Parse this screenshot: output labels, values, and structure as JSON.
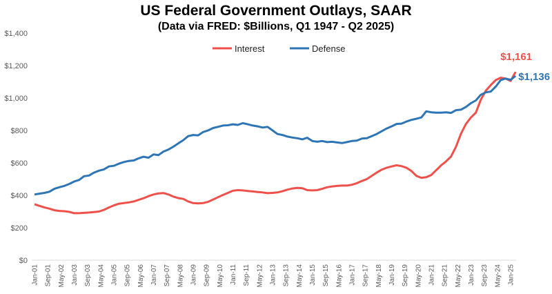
{
  "chart_data": {
    "type": "line",
    "title": "US Federal Government Outlays, SAAR",
    "subtitle": "(Data via FRED: $Billions, Q1 1947 - Q2 2025)",
    "xlabel": "",
    "ylabel": "",
    "ylim": [
      0,
      1400
    ],
    "y_ticks": [
      "$0",
      "$200",
      "$400",
      "$600",
      "$800",
      "$1,000",
      "$1,200",
      "$1,400"
    ],
    "y_tick_values": [
      0,
      200,
      400,
      600,
      800,
      1000,
      1200,
      1400
    ],
    "x_ticks": [
      "Jan-01",
      "Sep-01",
      "May-02",
      "Jan-03",
      "Sep-03",
      "May-04",
      "Jan-05",
      "Sep-05",
      "May-06",
      "Jan-07",
      "Sep-07",
      "May-08",
      "Jan-09",
      "Sep-09",
      "May-10",
      "Jan-11",
      "Sep-11",
      "May-12",
      "Jan-13",
      "Sep-13",
      "May-14",
      "Jan-15",
      "Sep-15",
      "May-16",
      "Jan-17",
      "Sep-17",
      "May-18",
      "Jan-19",
      "Sep-19",
      "May-20",
      "Jan-21",
      "Sep-21",
      "May-22",
      "Jan-23",
      "Sep-23",
      "May-24",
      "Jan-25"
    ],
    "x_start": "2001-Q1",
    "x_frequency": "quarterly",
    "grid": false,
    "legend_position": "top-center",
    "series": [
      {
        "name": "Interest",
        "color": "#F0504A",
        "end_label": "$1,161",
        "values": [
          345,
          335,
          325,
          318,
          308,
          304,
          302,
          298,
          290,
          290,
          292,
          294,
          297,
          300,
          310,
          325,
          338,
          348,
          352,
          356,
          362,
          372,
          382,
          395,
          405,
          412,
          414,
          405,
          392,
          383,
          378,
          362,
          352,
          350,
          352,
          360,
          374,
          388,
          402,
          415,
          428,
          432,
          430,
          427,
          424,
          420,
          418,
          413,
          415,
          418,
          425,
          435,
          442,
          446,
          444,
          432,
          430,
          432,
          440,
          450,
          455,
          458,
          460,
          460,
          465,
          475,
          488,
          500,
          520,
          540,
          558,
          570,
          578,
          585,
          580,
          570,
          550,
          520,
          508,
          512,
          525,
          555,
          585,
          610,
          640,
          700,
          780,
          840,
          880,
          910,
          990,
          1045,
          1080,
          1110,
          1125,
          1120,
          1105,
          1161
        ]
      },
      {
        "name": "Defense",
        "color": "#2E75B6",
        "end_label": "$1,136",
        "values": [
          405,
          410,
          415,
          422,
          440,
          450,
          458,
          470,
          485,
          495,
          518,
          522,
          540,
          552,
          560,
          578,
          582,
          595,
          605,
          612,
          615,
          628,
          638,
          632,
          652,
          648,
          670,
          682,
          700,
          720,
          740,
          765,
          772,
          770,
          790,
          800,
          815,
          822,
          830,
          832,
          838,
          834,
          845,
          838,
          830,
          825,
          818,
          822,
          800,
          778,
          772,
          762,
          756,
          752,
          745,
          755,
          735,
          730,
          735,
          728,
          730,
          726,
          722,
          728,
          735,
          737,
          750,
          752,
          765,
          778,
          795,
          812,
          825,
          840,
          842,
          855,
          865,
          872,
          880,
          918,
          912,
          910,
          910,
          912,
          908,
          925,
          928,
          945,
          968,
          985,
          1020,
          1035,
          1040,
          1070,
          1110,
          1120,
          1112,
          1136
        ]
      }
    ]
  }
}
